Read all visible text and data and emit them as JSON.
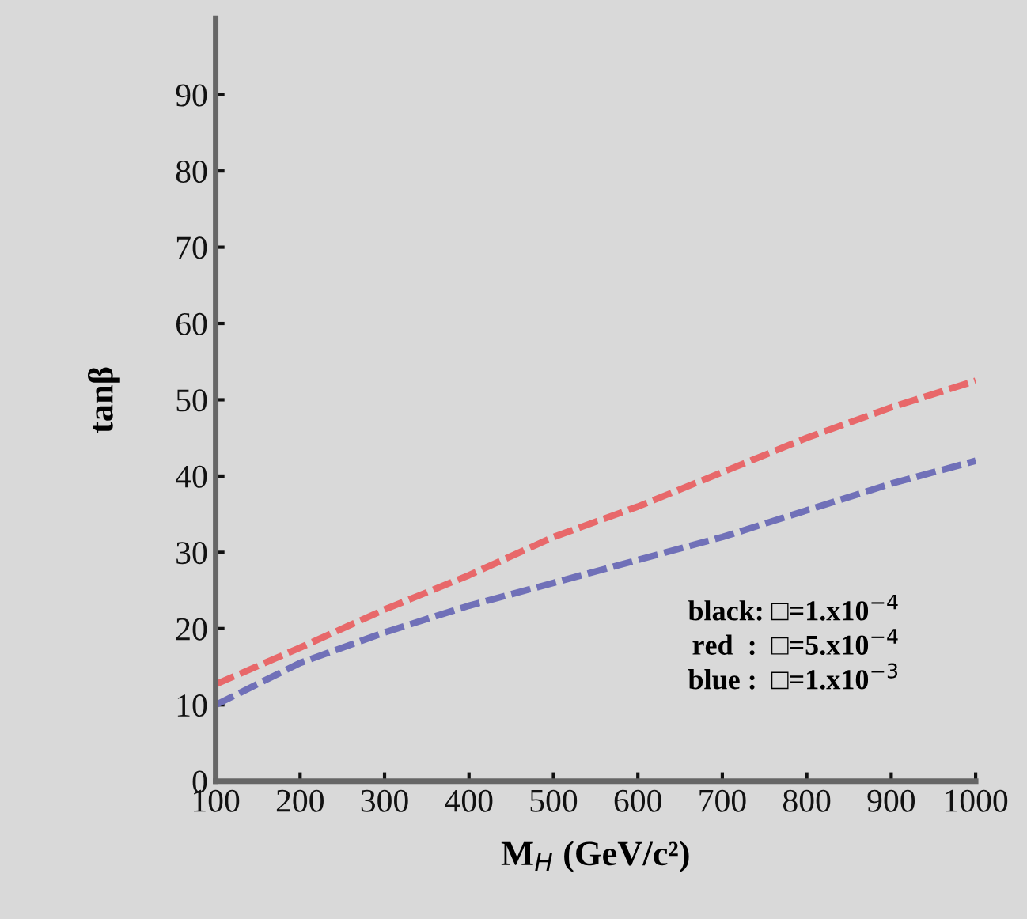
{
  "chart_data": {
    "type": "line",
    "xlabel": "M$_{H}$ (GeV/c²)",
    "ylabel": "tanβ",
    "x": [
      100,
      200,
      300,
      400,
      500,
      600,
      700,
      800,
      900,
      1000
    ],
    "series": [
      {
        "color": "#e8686a",
        "values": [
          12.7,
          17.5,
          22.5,
          27,
          32,
          36,
          40.5,
          45,
          49,
          52.5
        ]
      },
      {
        "color": "#7070b8",
        "values": [
          10,
          15.5,
          19.5,
          23,
          26,
          29,
          32,
          35.5,
          39,
          42
        ]
      }
    ],
    "xlim": [
      100,
      1000
    ],
    "ylim": [
      0,
      100
    ],
    "xticks": [
      100,
      200,
      300,
      400,
      500,
      600,
      700,
      800,
      900,
      1000
    ],
    "yticks": [
      0,
      10,
      20,
      30,
      40,
      50,
      60,
      70,
      80,
      90
    ],
    "line_style": "dashed",
    "marker": "none",
    "grid": false,
    "annotations": [
      "black: □=1.x10$^{−4}$",
      "red  :  □=5.x10$^{−4}$",
      "blue :  □=1.x10$^{−3}$"
    ]
  }
}
